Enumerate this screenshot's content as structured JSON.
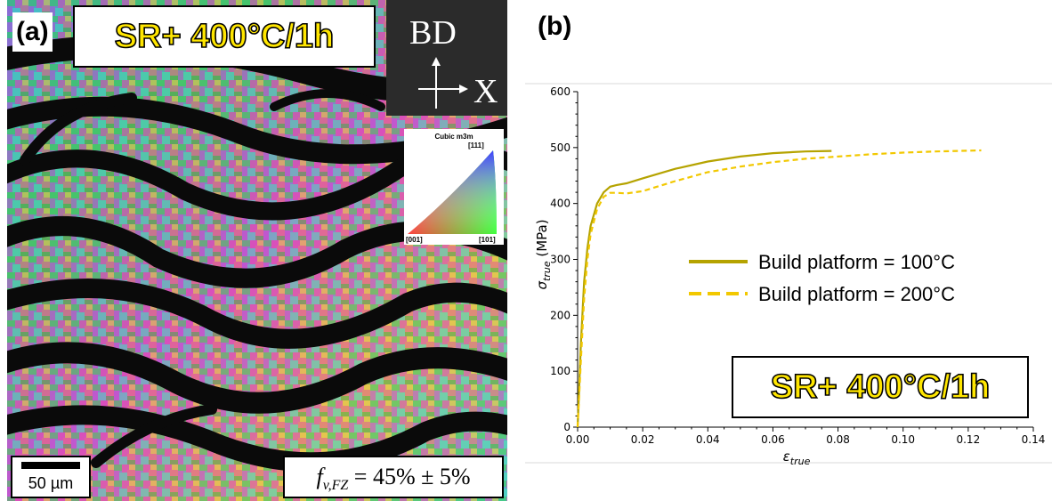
{
  "panel_a": {
    "label": "(a)",
    "condition": "SR+ 400°C/1h",
    "direction_up": "BD",
    "direction_right": "X",
    "ipf_title": "Cubic m3m",
    "ipf_111": "[111]",
    "ipf_001": "[001]",
    "ipf_101": "[101]",
    "scale_bar": "50 µm",
    "fraction_symbol": "f",
    "fraction_subscript": "v,FZ",
    "fraction_value": "= 45% ± 5%"
  },
  "panel_b": {
    "label": "(b)",
    "condition": "SR+ 400°C/1h"
  },
  "chart_data": {
    "type": "line",
    "xlabel": "ε",
    "xlabel_sub": "true",
    "ylabel": "σ",
    "ylabel_sub": "true",
    "ylabel_unit": "(MPa)",
    "xlim": [
      0,
      0.14
    ],
    "ylim": [
      0,
      600
    ],
    "x_ticks": [
      0.0,
      0.02,
      0.04,
      0.06,
      0.08,
      0.1,
      0.12,
      0.14
    ],
    "x_tick_labels": [
      "0.00",
      "0.02",
      "0.04",
      "0.06",
      "0.08",
      "0.10",
      "0.12",
      "0.14"
    ],
    "y_ticks": [
      0,
      100,
      200,
      300,
      400,
      500,
      600
    ],
    "y_tick_labels": [
      "0",
      "100",
      "200",
      "300",
      "400",
      "500",
      "600"
    ],
    "legend_position": "center-right",
    "series": [
      {
        "name": "Build platform = 100°C",
        "color": "#b5a300",
        "dash": "solid",
        "x": [
          0,
          0.001,
          0.002,
          0.003,
          0.004,
          0.006,
          0.008,
          0.01,
          0.012,
          0.015,
          0.02,
          0.03,
          0.04,
          0.05,
          0.06,
          0.07,
          0.078
        ],
        "y": [
          0,
          150,
          260,
          320,
          360,
          400,
          420,
          430,
          433,
          436,
          445,
          462,
          475,
          484,
          490,
          493,
          494
        ]
      },
      {
        "name": "Build platform = 200°C",
        "color": "#f2c800",
        "dash": "dashed",
        "x": [
          0,
          0.001,
          0.002,
          0.003,
          0.004,
          0.006,
          0.008,
          0.01,
          0.012,
          0.015,
          0.02,
          0.03,
          0.04,
          0.05,
          0.06,
          0.07,
          0.08,
          0.09,
          0.1,
          0.11,
          0.124
        ],
        "y": [
          0,
          120,
          230,
          300,
          345,
          390,
          412,
          419,
          419,
          418,
          422,
          440,
          456,
          466,
          474,
          480,
          484,
          488,
          491,
          493,
          495
        ]
      }
    ]
  }
}
